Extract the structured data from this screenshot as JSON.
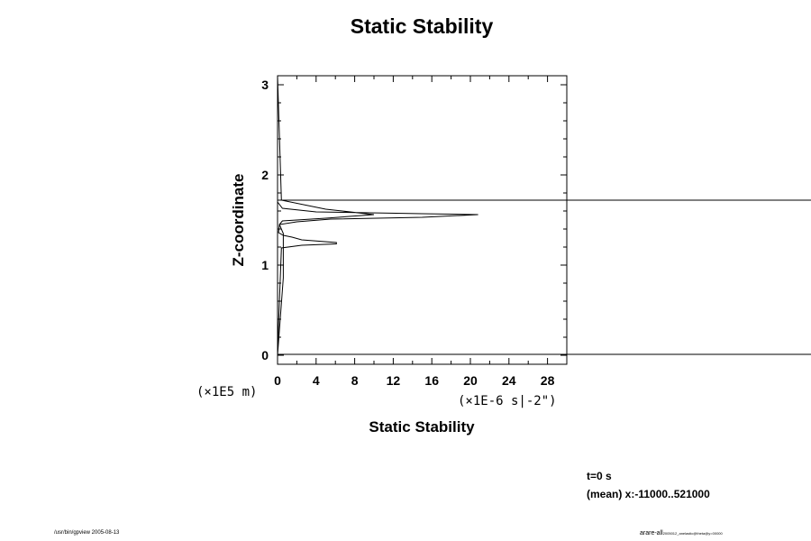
{
  "chart_data": {
    "type": "line",
    "title": "Static Stability",
    "xlabel": "Static Stability",
    "ylabel": "Z-coordinate",
    "x_unit": "(×1E-6 s|-2\")",
    "y_unit": "(×1E5 m)",
    "xlim": [
      0,
      30
    ],
    "ylim": [
      -0.1,
      3.1
    ],
    "x_ticks": [
      "0",
      "4",
      "8",
      "12",
      "16",
      "20",
      "24",
      "28"
    ],
    "y_ticks": [
      "0",
      "1",
      "2",
      "3"
    ],
    "grid": false,
    "series": [
      {
        "x": [
          0,
          0,
          0.4,
          2.5,
          6.1,
          6.1,
          2.5,
          1.5,
          0.6,
          0.1,
          0.2,
          2.0,
          5.5,
          15,
          20.8,
          15,
          4,
          0.5,
          0,
          0,
          0.4,
          5.0,
          10.0,
          5.0,
          0.5,
          0.2,
          0.6,
          0.6,
          0,
          0
        ],
        "y": [
          0.0,
          0.05,
          1.19,
          1.22,
          1.235,
          1.25,
          1.28,
          1.31,
          1.33,
          1.36,
          1.45,
          1.48,
          1.51,
          1.53,
          1.56,
          1.57,
          1.59,
          1.63,
          1.7,
          3.1,
          1.72,
          1.62,
          1.56,
          1.52,
          1.49,
          1.45,
          1.35,
          0.86,
          0.0,
          0.0
        ],
        "_note": "single profile; order: bottom to top"
      }
    ],
    "hlines": [
      0.01,
      1.72
    ]
  },
  "info": {
    "time": "t=0 s",
    "mean": "(mean) x:-11000..521000"
  },
  "footer": {
    "left": "/usr/bin/gpview 2005-08-13",
    "right_main": "arare-all",
    "right_sub": "2005012_anelastic@theta@y=00000"
  }
}
